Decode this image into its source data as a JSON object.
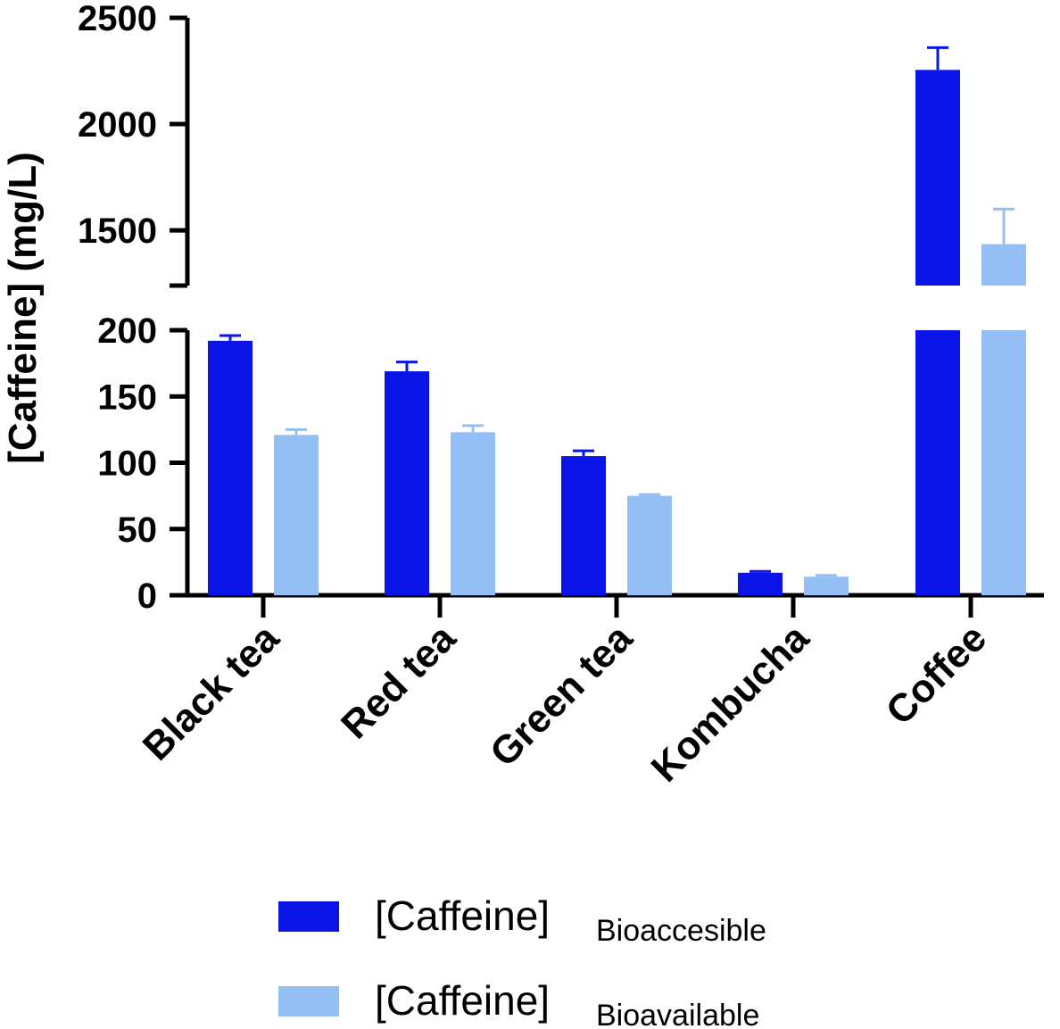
{
  "chart_data": {
    "type": "bar",
    "categories": [
      "Black tea",
      "Red tea",
      "Green tea",
      "Kombucha",
      "Coffee"
    ],
    "series": [
      {
        "name_main": "[Caffeine]",
        "name_sub": "Bioaccesible",
        "color": "#0a14e6",
        "values": [
          192,
          169,
          105,
          17,
          2255
        ],
        "errors": [
          4,
          7,
          4,
          1,
          105
        ]
      },
      {
        "name_main": "[Caffeine]",
        "name_sub": "Bioavailable",
        "color": "#93bff5",
        "values": [
          121,
          123,
          75,
          14,
          1435
        ],
        "errors": [
          4,
          5,
          1,
          1,
          165
        ]
      }
    ],
    "ylabel": "[Caffeine] (mg/L)",
    "y_axis_break": true,
    "y_lower": {
      "range": [
        0,
        200
      ],
      "ticks": [
        0,
        50,
        100,
        150,
        200
      ]
    },
    "y_upper": {
      "range": [
        1240,
        2500
      ],
      "ticks": [
        1500,
        2000,
        2500
      ]
    },
    "legend_position": "bottom",
    "grid": false
  }
}
